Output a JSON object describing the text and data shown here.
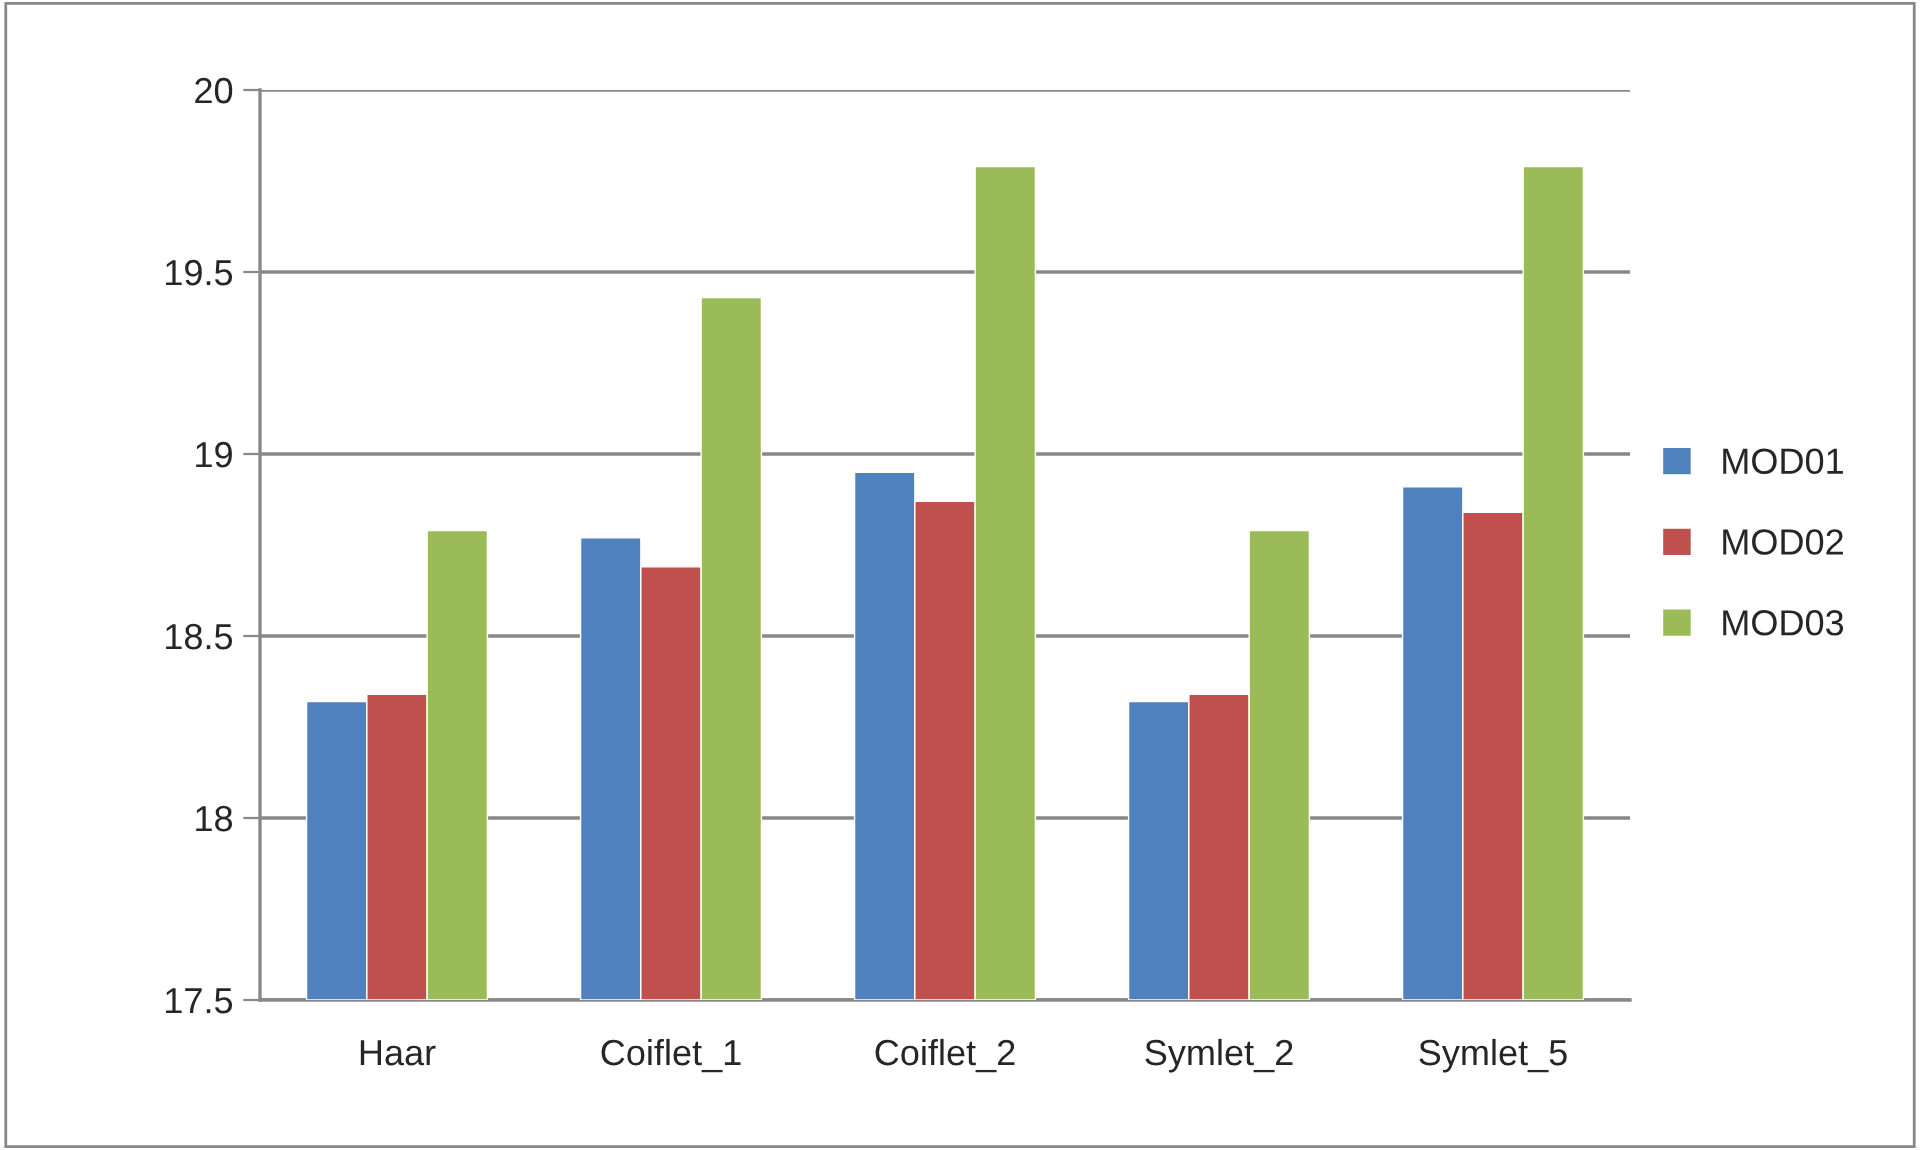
{
  "chart_data": {
    "type": "bar",
    "categories": [
      "Haar",
      "Coiflet_1",
      "Coiflet_2",
      "Symlet_2",
      "Symlet_5"
    ],
    "series": [
      {
        "name": "MOD01",
        "color": "#4f81bd",
        "values": [
          18.32,
          18.77,
          18.95,
          18.32,
          18.91
        ]
      },
      {
        "name": "MOD02",
        "color": "#c0504d",
        "values": [
          18.34,
          18.69,
          18.87,
          18.34,
          18.84
        ]
      },
      {
        "name": "MOD03",
        "color": "#9bbb59",
        "values": [
          18.79,
          19.43,
          19.79,
          18.79,
          19.79
        ]
      }
    ],
    "ylim": [
      17.5,
      20
    ],
    "yticks": [
      17.5,
      18,
      18.5,
      19,
      19.5,
      20
    ],
    "grid": "y",
    "legend": "right"
  }
}
